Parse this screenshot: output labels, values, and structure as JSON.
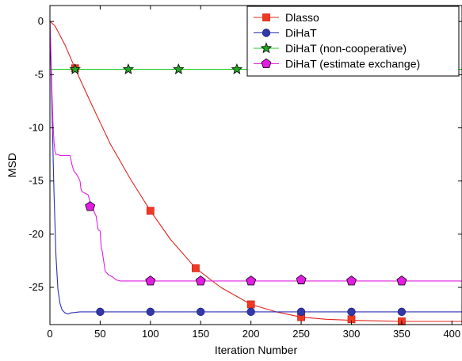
{
  "chart_data": {
    "type": "line",
    "xlabel": "Iteration Number",
    "ylabel": "MSD",
    "xlim": [
      0,
      410
    ],
    "ylim": [
      -28.5,
      1.5
    ],
    "xticks": [
      0,
      50,
      100,
      150,
      200,
      250,
      300,
      350,
      400
    ],
    "yticks": [
      0,
      -5,
      -10,
      -15,
      -20,
      -25
    ],
    "grid": false,
    "legend_position": "top-right",
    "series": [
      {
        "name": "Dlasso",
        "color": "#e0241b",
        "marker": "square",
        "x": [
          0,
          5,
          15,
          25,
          40,
          60,
          80,
          100,
          120,
          145,
          170,
          200,
          225,
          250,
          275,
          300,
          325,
          350,
          380,
          410
        ],
        "y": [
          0,
          -0.4,
          -2.2,
          -4.4,
          -7.5,
          -11.5,
          -14.8,
          -17.8,
          -20.5,
          -23.2,
          -25.0,
          -26.6,
          -27.3,
          -27.8,
          -28.0,
          -28.1,
          -28.15,
          -28.2,
          -28.2,
          -28.2
        ],
        "marker_x": [
          25,
          100,
          145,
          200,
          250,
          300,
          350
        ],
        "marker_y": [
          -4.4,
          -17.8,
          -23.2,
          -26.6,
          -27.8,
          -28.0,
          -28.2
        ]
      },
      {
        "name": "DiHaT",
        "color": "#2a2fb0",
        "marker": "circle",
        "x": [
          0,
          2,
          4,
          6,
          8,
          10,
          12,
          15,
          18,
          21,
          30,
          50,
          100,
          200,
          300,
          410
        ],
        "y": [
          0,
          -8.0,
          -16.0,
          -22.0,
          -25.2,
          -26.5,
          -27.1,
          -27.4,
          -27.5,
          -27.4,
          -27.3,
          -27.3,
          -27.3,
          -27.3,
          -27.3,
          -27.3
        ],
        "marker_x": [
          50,
          100,
          150,
          200,
          250,
          300,
          350
        ],
        "marker_y": [
          -27.3,
          -27.3,
          -27.3,
          -27.3,
          -27.3,
          -27.3,
          -27.3
        ]
      },
      {
        "name": "DiHaT (non-cooperative)",
        "color": "#22cc22",
        "marker": "star",
        "x": [
          0,
          410
        ],
        "y": [
          -4.5,
          -4.5
        ],
        "marker_x": [
          25,
          78,
          128,
          186
        ],
        "marker_y": [
          -4.5,
          -4.5,
          -4.5,
          -4.5
        ]
      },
      {
        "name": "DiHaT (estimate exchange)",
        "color": "#e020e0",
        "marker": "pentagon",
        "x": [
          0,
          1,
          2,
          3,
          4,
          5,
          6,
          8,
          10,
          20,
          22,
          24,
          26,
          28,
          30,
          31,
          32,
          38,
          40,
          42,
          44,
          46,
          48,
          50,
          51,
          52,
          55,
          58,
          62,
          66,
          70,
          100,
          200,
          300,
          410
        ],
        "y": [
          0,
          -3.0,
          -6.5,
          -9.5,
          -11.3,
          -12.2,
          -12.5,
          -12.5,
          -12.6,
          -12.6,
          -13.5,
          -14.1,
          -14.3,
          -14.6,
          -15.0,
          -15.8,
          -16.0,
          -16.3,
          -17.0,
          -17.2,
          -17.9,
          -18.3,
          -19.6,
          -19.7,
          -21.2,
          -21.6,
          -23.5,
          -23.8,
          -24.0,
          -24.3,
          -24.4,
          -24.4,
          -24.4,
          -24.4,
          -24.4
        ],
        "marker_x": [
          40,
          100,
          150,
          200,
          250,
          300,
          350
        ],
        "marker_y": [
          -17.4,
          -24.4,
          -24.4,
          -24.4,
          -24.3,
          -24.4,
          -24.4
        ]
      }
    ]
  }
}
